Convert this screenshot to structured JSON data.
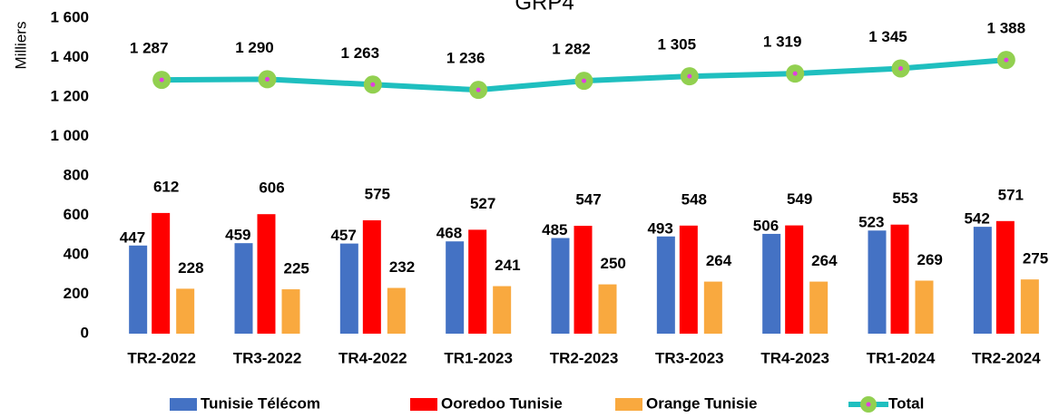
{
  "chart_data": {
    "type": "bar_line",
    "title": "GRP4",
    "y_label": "Milliers",
    "categories": [
      "TR2-2022",
      "TR3-2022",
      "TR4-2022",
      "TR1-2023",
      "TR2-2023",
      "TR3-2023",
      "TR4-2023",
      "TR1-2024",
      "TR2-2024"
    ],
    "series": [
      {
        "name": "Tunisie Télécom",
        "type": "bar",
        "color": "#4472c4",
        "values": [
          447,
          459,
          457,
          468,
          485,
          493,
          506,
          523,
          542
        ]
      },
      {
        "name": "Ooredoo Tunisie",
        "type": "bar",
        "color": "#ff0000",
        "values": [
          612,
          606,
          575,
          527,
          547,
          548,
          549,
          553,
          571
        ]
      },
      {
        "name": "Orange Tunisie",
        "type": "bar",
        "color": "#f9a93f",
        "values": [
          228,
          225,
          232,
          241,
          250,
          264,
          264,
          269,
          275
        ]
      },
      {
        "name": "Total",
        "type": "line",
        "color": "#1fbfbf",
        "marker_color": "#92d050",
        "values": [
          1287,
          1290,
          1263,
          1236,
          1282,
          1305,
          1319,
          1345,
          1388
        ],
        "value_labels": [
          "1 287",
          "1 290",
          "1 263",
          "1 236",
          "1 282",
          "1 305",
          "1 319",
          "1 345",
          "1 388"
        ]
      }
    ],
    "ylim": [
      0,
      1600
    ],
    "yticks": [
      0,
      200,
      400,
      600,
      800,
      {
        "value": 1000,
        "label": "1 000"
      },
      {
        "value": 1200,
        "label": "1 200"
      },
      {
        "value": 1400,
        "label": "1 400"
      },
      {
        "value": 1600,
        "label": "1 600"
      }
    ],
    "grid": false,
    "legend": "bottom"
  }
}
